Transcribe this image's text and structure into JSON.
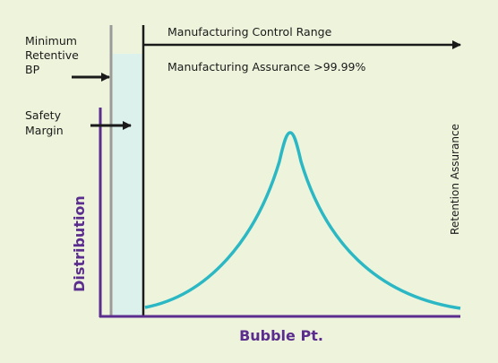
{
  "labels": {
    "minimum_retentive_bp": [
      "Minimum",
      "Retentive",
      "BP"
    ],
    "safety_margin": [
      "Safety",
      "Margin"
    ],
    "manufacturing_control_range": "Manufacturing Control Range",
    "manufacturing_assurance": "Manufacturing Assurance >99.99%",
    "retention_assurance": "Retention Assurance",
    "y_axis": "Distribution",
    "x_axis": "Bubble Pt."
  },
  "colors": {
    "background": "#eef4dc",
    "axis": "#5b2d8e",
    "curve": "#2bb8c4",
    "safety_band": "#dcf0ec",
    "grey_line": "#9a9a9a",
    "arrow": "#1a1a1a"
  }
}
